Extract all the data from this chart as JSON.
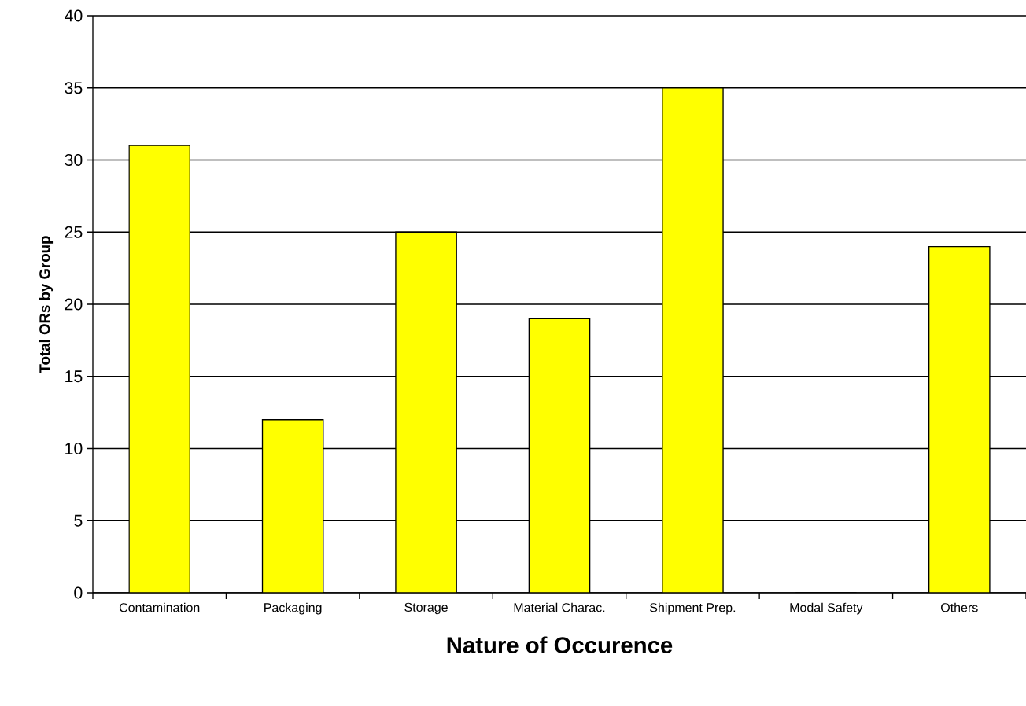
{
  "chart_data": {
    "type": "bar",
    "xlabel": "Nature of Occurence",
    "ylabel": "Total ORs by Group",
    "categories": [
      "Contamination",
      "Packaging",
      "Storage",
      "Material Charac.",
      "Shipment Prep.",
      "Modal Safety",
      "Others"
    ],
    "values": [
      31,
      12,
      25,
      19,
      35,
      0,
      24
    ],
    "color": "#ffff00",
    "ylim": [
      0,
      40
    ],
    "yticks": [
      0,
      5,
      10,
      15,
      20,
      25,
      30,
      35,
      40
    ],
    "grid": "y"
  }
}
